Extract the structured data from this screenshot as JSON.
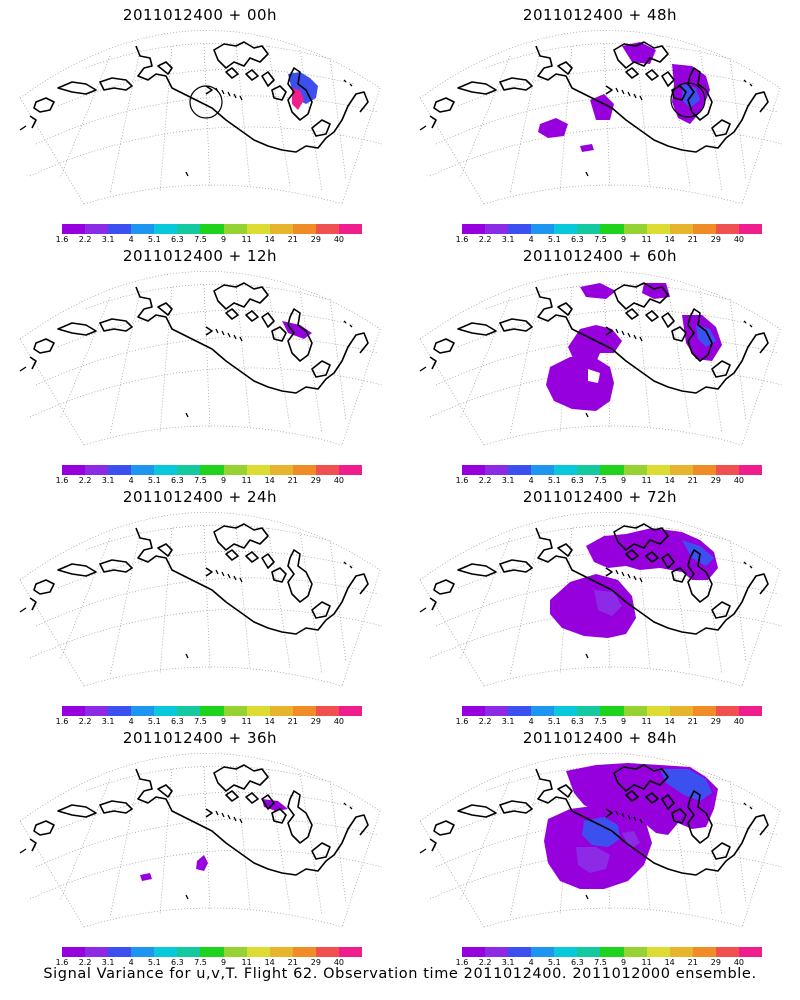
{
  "panels": [
    {
      "title": "2011012400 + 00h",
      "signal": "t00"
    },
    {
      "title": "2011012400 + 48h",
      "signal": "t48"
    },
    {
      "title": "2011012400 + 12h",
      "signal": "t12"
    },
    {
      "title": "2011012400 + 60h",
      "signal": "t60"
    },
    {
      "title": "2011012400 + 24h",
      "signal": "t24"
    },
    {
      "title": "2011012400 + 72h",
      "signal": "t72"
    },
    {
      "title": "2011012400 + 36h",
      "signal": "t36"
    },
    {
      "title": "2011012400 + 84h",
      "signal": "t84"
    }
  ],
  "colorbar": {
    "labels": [
      "1.6",
      "2.2",
      "3.1",
      "4",
      "5.1",
      "6.3",
      "7.5",
      "9",
      "11",
      "14",
      "21",
      "29",
      "40"
    ],
    "colors": [
      "#9600dc",
      "#8c2ae6",
      "#3c50f0",
      "#1e96f0",
      "#0ac8dc",
      "#14c8a0",
      "#1ed21e",
      "#96d232",
      "#dcdc32",
      "#e6b42d",
      "#f08c28",
      "#f05050",
      "#f01e8c"
    ]
  },
  "caption": "Signal Variance for u,v,T. Flight 62. Observation time 2011012400. 2011012000 ensemble."
}
